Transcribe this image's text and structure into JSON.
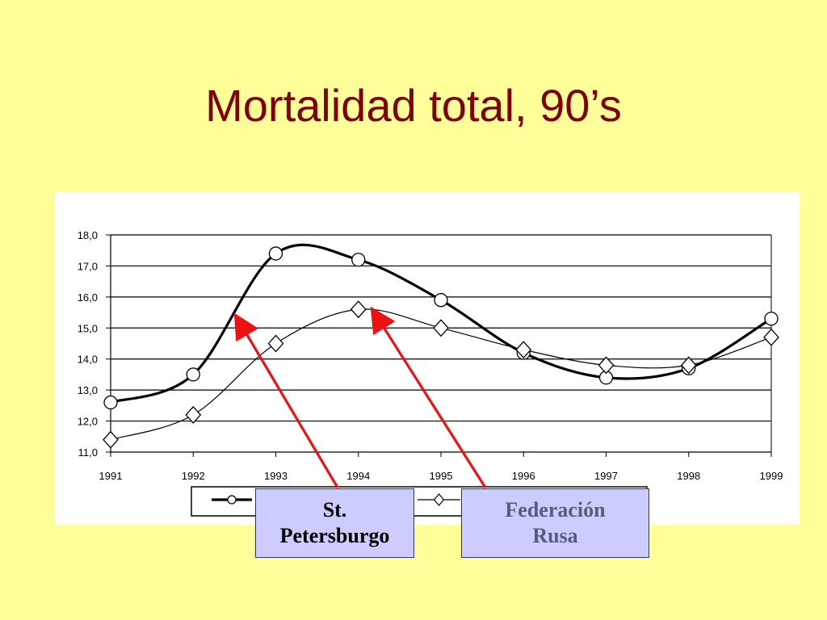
{
  "title": "Mortalidad total, 90’s",
  "chart_data": {
    "type": "line",
    "x": [
      "1991",
      "1992",
      "1993",
      "1994",
      "1995",
      "1996",
      "1997",
      "1998",
      "1999"
    ],
    "y_ticks": [
      "11,0",
      "12,0",
      "13,0",
      "14,0",
      "15,0",
      "16,0",
      "17,0",
      "18,0"
    ],
    "ylim": [
      11,
      18
    ],
    "grid": true,
    "legend_placement": "bottom",
    "series": [
      {
        "name": "St. Petersburgo",
        "marker": "circle",
        "line": "thick",
        "values": [
          12.6,
          13.5,
          17.4,
          17.2,
          15.9,
          14.2,
          13.4,
          13.7,
          15.3
        ]
      },
      {
        "name": "Federación Rusa",
        "marker": "diamond",
        "line": "thin",
        "values": [
          11.4,
          12.2,
          14.5,
          15.6,
          15.0,
          14.3,
          13.8,
          13.8,
          14.7
        ]
      }
    ]
  },
  "callouts": {
    "st_petersburgo": {
      "line1": "St.",
      "line2": "Petersburgo"
    },
    "federacion_rusa": {
      "line1": "Federación",
      "line2": "Rusa"
    }
  },
  "colors": {
    "background": "#ffff99",
    "title": "#800000",
    "arrow": "#ee1111",
    "callout_fill": "#ccccff"
  }
}
